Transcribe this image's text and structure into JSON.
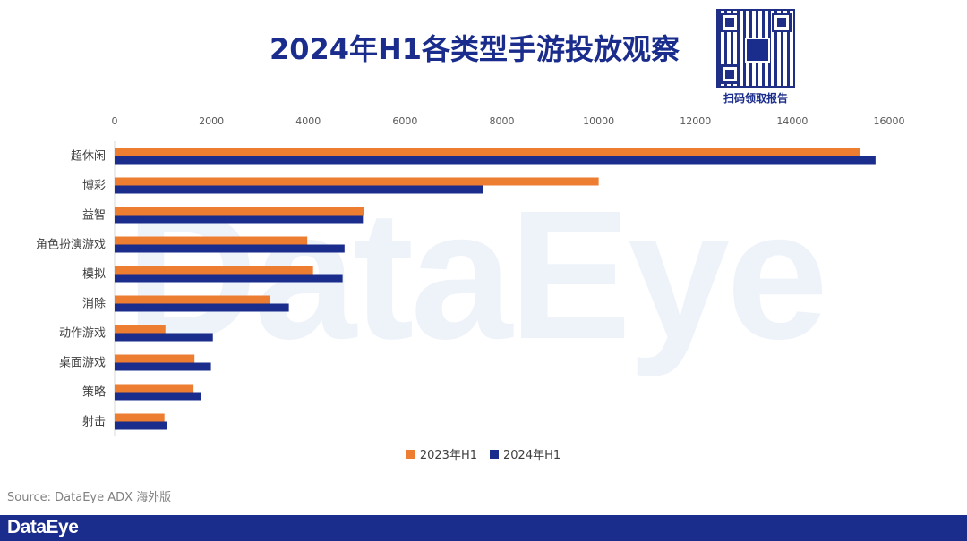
{
  "title": "2024年H1各类型手游投放观察",
  "qr_caption": "扫码领取报告",
  "watermark": "DataEye",
  "source": "Source: DataEye ADX 海外版",
  "footer_logo": "DataEye",
  "colors": {
    "series_2023": "#ed7d31",
    "series_2024": "#1a2c8c",
    "footer": "#1a2c8c"
  },
  "chart_data": {
    "type": "bar",
    "orientation": "horizontal",
    "categories": [
      "超休闲",
      "博彩",
      "益智",
      "角色扮演游戏",
      "模拟",
      "消除",
      "动作游戏",
      "桌面游戏",
      "策略",
      "射击"
    ],
    "series": [
      {
        "name": "2023年H1",
        "values": [
          15400,
          10000,
          5150,
          3980,
          4100,
          3200,
          1050,
          1650,
          1630,
          1030
        ]
      },
      {
        "name": "2024年H1",
        "values": [
          15720,
          7620,
          5130,
          4750,
          4710,
          3600,
          2030,
          1990,
          1780,
          1080
        ]
      }
    ],
    "x_ticks": [
      "0",
      "2000",
      "4000",
      "6000",
      "8000",
      "10000",
      "12000",
      "14000",
      "16000"
    ],
    "xlim": [
      0,
      16000
    ],
    "grid": false,
    "legend_position": "bottom"
  }
}
